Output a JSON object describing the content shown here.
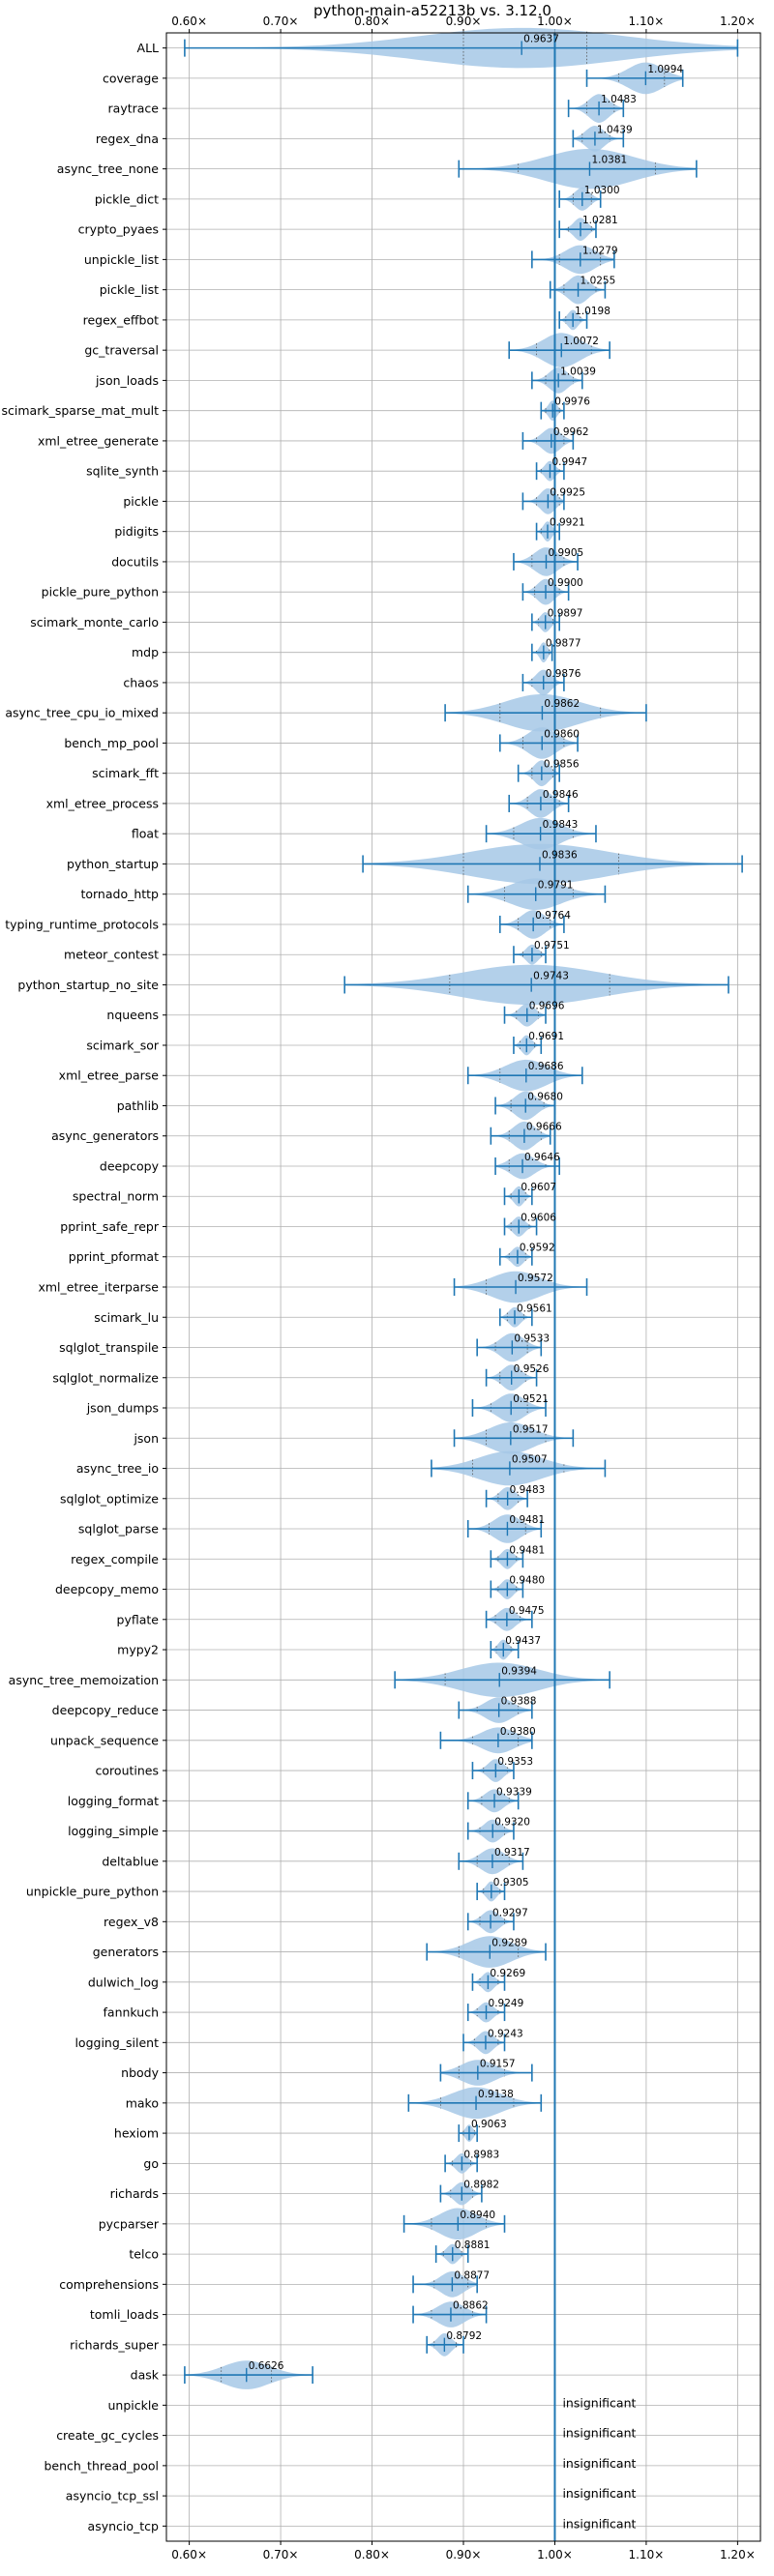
{
  "chart_data": {
    "type": "violin",
    "title": "python-main-a52213b vs. 3.12.0",
    "xlim": [
      0.575,
      1.225
    ],
    "x_ticks": [
      0.6,
      0.7,
      0.8,
      0.9,
      1.0,
      1.1,
      1.2
    ],
    "x_tick_labels": [
      "0.60×",
      "0.70×",
      "0.80×",
      "0.90×",
      "1.00×",
      "1.10×",
      "1.20×"
    ],
    "reference_line": 1.0,
    "grid": true,
    "colors": {
      "violin_fill": "#a6c8e6",
      "line": "#1f77b4",
      "grid": "#b0b0b0"
    },
    "insignificant_label": "insignificant",
    "benchmarks": [
      {
        "name": "ALL",
        "median": 0.9637,
        "label": "0.9637",
        "lo": 0.595,
        "hi": 1.2,
        "q1": 0.9,
        "q3": 1.035,
        "width": 0.7
      },
      {
        "name": "coverage",
        "median": 1.0994,
        "label": "1.0994",
        "lo": 1.035,
        "hi": 1.14,
        "q1": 1.07,
        "q3": 1.12,
        "width": 0.55
      },
      {
        "name": "raytrace",
        "median": 1.0483,
        "label": "1.0483",
        "lo": 1.015,
        "hi": 1.075,
        "q1": 1.035,
        "q3": 1.065,
        "width": 0.5
      },
      {
        "name": "regex_dna",
        "median": 1.0439,
        "label": "1.0439",
        "lo": 1.02,
        "hi": 1.075,
        "q1": 1.03,
        "q3": 1.06,
        "width": 0.45
      },
      {
        "name": "async_tree_none",
        "median": 1.0381,
        "label": "1.0381",
        "lo": 0.895,
        "hi": 1.155,
        "q1": 0.96,
        "q3": 1.11,
        "width": 0.7
      },
      {
        "name": "pickle_dict",
        "median": 1.03,
        "label": "1.0300",
        "lo": 1.005,
        "hi": 1.05,
        "q1": 1.02,
        "q3": 1.04,
        "width": 0.4
      },
      {
        "name": "crypto_pyaes",
        "median": 1.0281,
        "label": "1.0281",
        "lo": 1.005,
        "hi": 1.045,
        "q1": 1.015,
        "q3": 1.04,
        "width": 0.4
      },
      {
        "name": "unpickle_list",
        "median": 1.0279,
        "label": "1.0279",
        "lo": 0.975,
        "hi": 1.065,
        "q1": 1.005,
        "q3": 1.05,
        "width": 0.5
      },
      {
        "name": "pickle_list",
        "median": 1.0255,
        "label": "1.0255",
        "lo": 0.995,
        "hi": 1.055,
        "q1": 1.01,
        "q3": 1.045,
        "width": 0.5
      },
      {
        "name": "regex_effbot",
        "median": 1.0198,
        "label": "1.0198",
        "lo": 1.005,
        "hi": 1.035,
        "q1": 1.012,
        "q3": 1.028,
        "width": 0.35
      },
      {
        "name": "gc_traversal",
        "median": 1.0072,
        "label": "1.0072",
        "lo": 0.95,
        "hi": 1.06,
        "q1": 0.98,
        "q3": 1.04,
        "width": 0.6
      },
      {
        "name": "json_loads",
        "median": 1.0039,
        "label": "1.0039",
        "lo": 0.975,
        "hi": 1.03,
        "q1": 0.99,
        "q3": 1.02,
        "width": 0.45
      },
      {
        "name": "scimark_sparse_mat_mult",
        "median": 0.9976,
        "label": "0.9976",
        "lo": 0.985,
        "hi": 1.01,
        "q1": 0.99,
        "q3": 1.005,
        "width": 0.35
      },
      {
        "name": "xml_etree_generate",
        "median": 0.9962,
        "label": "0.9962",
        "lo": 0.965,
        "hi": 1.02,
        "q1": 0.98,
        "q3": 1.01,
        "width": 0.45
      },
      {
        "name": "sqlite_synth",
        "median": 0.9947,
        "label": "0.9947",
        "lo": 0.98,
        "hi": 1.01,
        "q1": 0.985,
        "q3": 1.005,
        "width": 0.35
      },
      {
        "name": "pickle",
        "median": 0.9925,
        "label": "0.9925",
        "lo": 0.965,
        "hi": 1.01,
        "q1": 0.98,
        "q3": 1.005,
        "width": 0.45
      },
      {
        "name": "pidigits",
        "median": 0.9921,
        "label": "0.9921",
        "lo": 0.98,
        "hi": 1.005,
        "q1": 0.985,
        "q3": 1.0,
        "width": 0.35
      },
      {
        "name": "docutils",
        "median": 0.9905,
        "label": "0.9905",
        "lo": 0.955,
        "hi": 1.025,
        "q1": 0.975,
        "q3": 1.01,
        "width": 0.5
      },
      {
        "name": "pickle_pure_python",
        "median": 0.99,
        "label": "0.9900",
        "lo": 0.965,
        "hi": 1.015,
        "q1": 0.978,
        "q3": 1.005,
        "width": 0.45
      },
      {
        "name": "scimark_monte_carlo",
        "median": 0.9897,
        "label": "0.9897",
        "lo": 0.975,
        "hi": 1.005,
        "q1": 0.982,
        "q3": 0.998,
        "width": 0.35
      },
      {
        "name": "mdp",
        "median": 0.9877,
        "label": "0.9877",
        "lo": 0.975,
        "hi": 0.997,
        "q1": 0.98,
        "q3": 0.994,
        "width": 0.35
      },
      {
        "name": "chaos",
        "median": 0.9876,
        "label": "0.9876",
        "lo": 0.965,
        "hi": 1.01,
        "q1": 0.975,
        "q3": 1.0,
        "width": 0.45
      },
      {
        "name": "async_tree_cpu_io_mixed",
        "median": 0.9862,
        "label": "0.9862",
        "lo": 0.88,
        "hi": 1.1,
        "q1": 0.94,
        "q3": 1.05,
        "width": 0.65
      },
      {
        "name": "bench_mp_pool",
        "median": 0.986,
        "label": "0.9860",
        "lo": 0.94,
        "hi": 1.025,
        "q1": 0.965,
        "q3": 1.01,
        "width": 0.55
      },
      {
        "name": "scimark_fft",
        "median": 0.9856,
        "label": "0.9856",
        "lo": 0.96,
        "hi": 1.005,
        "q1": 0.975,
        "q3": 0.998,
        "width": 0.45
      },
      {
        "name": "xml_etree_process",
        "median": 0.9846,
        "label": "0.9846",
        "lo": 0.95,
        "hi": 1.015,
        "q1": 0.97,
        "q3": 1.005,
        "width": 0.5
      },
      {
        "name": "float",
        "median": 0.9843,
        "label": "0.9843",
        "lo": 0.925,
        "hi": 1.045,
        "q1": 0.955,
        "q3": 1.02,
        "width": 0.55
      },
      {
        "name": "python_startup",
        "median": 0.9836,
        "label": "0.9836",
        "lo": 0.79,
        "hi": 1.205,
        "q1": 0.9,
        "q3": 1.07,
        "width": 0.7
      },
      {
        "name": "tornado_http",
        "median": 0.9791,
        "label": "0.9791",
        "lo": 0.905,
        "hi": 1.055,
        "q1": 0.945,
        "q3": 1.02,
        "width": 0.55
      },
      {
        "name": "typing_runtime_protocols",
        "median": 0.9764,
        "label": "0.9764",
        "lo": 0.94,
        "hi": 1.01,
        "q1": 0.96,
        "q3": 0.995,
        "width": 0.5
      },
      {
        "name": "meteor_contest",
        "median": 0.9751,
        "label": "0.9751",
        "lo": 0.955,
        "hi": 0.99,
        "q1": 0.965,
        "q3": 0.985,
        "width": 0.35
      },
      {
        "name": "python_startup_no_site",
        "median": 0.9743,
        "label": "0.9743",
        "lo": 0.77,
        "hi": 1.19,
        "q1": 0.885,
        "q3": 1.06,
        "width": 0.7
      },
      {
        "name": "nqueens",
        "median": 0.9696,
        "label": "0.9696",
        "lo": 0.945,
        "hi": 0.99,
        "q1": 0.958,
        "q3": 0.982,
        "width": 0.4
      },
      {
        "name": "scimark_sor",
        "median": 0.9691,
        "label": "0.9691",
        "lo": 0.955,
        "hi": 0.985,
        "q1": 0.962,
        "q3": 0.978,
        "width": 0.35
      },
      {
        "name": "xml_etree_parse",
        "median": 0.9686,
        "label": "0.9686",
        "lo": 0.905,
        "hi": 1.03,
        "q1": 0.94,
        "q3": 1.0,
        "width": 0.55
      },
      {
        "name": "pathlib",
        "median": 0.968,
        "label": "0.9680",
        "lo": 0.935,
        "hi": 1.0,
        "q1": 0.952,
        "q3": 0.988,
        "width": 0.5
      },
      {
        "name": "async_generators",
        "median": 0.9666,
        "label": "0.9666",
        "lo": 0.93,
        "hi": 0.995,
        "q1": 0.95,
        "q3": 0.985,
        "width": 0.5
      },
      {
        "name": "deepcopy",
        "median": 0.9646,
        "label": "0.9646",
        "lo": 0.935,
        "hi": 1.005,
        "q1": 0.95,
        "q3": 0.99,
        "width": 0.45
      },
      {
        "name": "spectral_norm",
        "median": 0.9607,
        "label": "0.9607",
        "lo": 0.945,
        "hi": 0.975,
        "q1": 0.952,
        "q3": 0.968,
        "width": 0.35
      },
      {
        "name": "pprint_safe_repr",
        "median": 0.9606,
        "label": "0.9606",
        "lo": 0.945,
        "hi": 0.98,
        "q1": 0.952,
        "q3": 0.972,
        "width": 0.35
      },
      {
        "name": "pprint_pformat",
        "median": 0.9592,
        "label": "0.9592",
        "lo": 0.94,
        "hi": 0.975,
        "q1": 0.95,
        "q3": 0.968,
        "width": 0.35
      },
      {
        "name": "xml_etree_iterparse",
        "median": 0.9572,
        "label": "0.9572",
        "lo": 0.89,
        "hi": 1.035,
        "q1": 0.925,
        "q3": 1.0,
        "width": 0.55
      },
      {
        "name": "scimark_lu",
        "median": 0.9561,
        "label": "0.9561",
        "lo": 0.94,
        "hi": 0.975,
        "q1": 0.948,
        "q3": 0.966,
        "width": 0.35
      },
      {
        "name": "sqlglot_transpile",
        "median": 0.9533,
        "label": "0.9533",
        "lo": 0.915,
        "hi": 0.985,
        "q1": 0.935,
        "q3": 0.97,
        "width": 0.5
      },
      {
        "name": "sqlglot_normalize",
        "median": 0.9526,
        "label": "0.9526",
        "lo": 0.925,
        "hi": 0.98,
        "q1": 0.94,
        "q3": 0.968,
        "width": 0.45
      },
      {
        "name": "json_dumps",
        "median": 0.9521,
        "label": "0.9521",
        "lo": 0.91,
        "hi": 0.99,
        "q1": 0.93,
        "q3": 0.97,
        "width": 0.5
      },
      {
        "name": "json",
        "median": 0.9517,
        "label": "0.9517",
        "lo": 0.89,
        "hi": 1.02,
        "q1": 0.925,
        "q3": 0.99,
        "width": 0.55
      },
      {
        "name": "async_tree_io",
        "median": 0.9507,
        "label": "0.9507",
        "lo": 0.865,
        "hi": 1.055,
        "q1": 0.91,
        "q3": 1.01,
        "width": 0.6
      },
      {
        "name": "sqlglot_optimize",
        "median": 0.9483,
        "label": "0.9483",
        "lo": 0.925,
        "hi": 0.97,
        "q1": 0.938,
        "q3": 0.96,
        "width": 0.4
      },
      {
        "name": "sqlglot_parse",
        "median": 0.9481,
        "label": "0.9481",
        "lo": 0.905,
        "hi": 0.985,
        "q1": 0.928,
        "q3": 0.968,
        "width": 0.5
      },
      {
        "name": "regex_compile",
        "median": 0.9481,
        "label": "0.9481",
        "lo": 0.93,
        "hi": 0.965,
        "q1": 0.938,
        "q3": 0.958,
        "width": 0.35
      },
      {
        "name": "deepcopy_memo",
        "median": 0.948,
        "label": "0.9480",
        "lo": 0.93,
        "hi": 0.965,
        "q1": 0.938,
        "q3": 0.958,
        "width": 0.35
      },
      {
        "name": "pyflate",
        "median": 0.9475,
        "label": "0.9475",
        "lo": 0.925,
        "hi": 0.975,
        "q1": 0.935,
        "q3": 0.962,
        "width": 0.4
      },
      {
        "name": "mypy2",
        "median": 0.9437,
        "label": "0.9437",
        "lo": 0.93,
        "hi": 0.96,
        "q1": 0.936,
        "q3": 0.952,
        "width": 0.35
      },
      {
        "name": "async_tree_memoization",
        "median": 0.9394,
        "label": "0.9394",
        "lo": 0.825,
        "hi": 1.06,
        "q1": 0.88,
        "q3": 1.0,
        "width": 0.6
      },
      {
        "name": "deepcopy_reduce",
        "median": 0.9388,
        "label": "0.9388",
        "lo": 0.895,
        "hi": 0.975,
        "q1": 0.915,
        "q3": 0.96,
        "width": 0.45
      },
      {
        "name": "unpack_sequence",
        "median": 0.938,
        "label": "0.9380",
        "lo": 0.875,
        "hi": 0.975,
        "q1": 0.91,
        "q3": 0.96,
        "width": 0.45
      },
      {
        "name": "coroutines",
        "median": 0.9353,
        "label": "0.9353",
        "lo": 0.91,
        "hi": 0.955,
        "q1": 0.922,
        "q3": 0.948,
        "width": 0.4
      },
      {
        "name": "logging_format",
        "median": 0.9339,
        "label": "0.9339",
        "lo": 0.905,
        "hi": 0.96,
        "q1": 0.92,
        "q3": 0.95,
        "width": 0.4
      },
      {
        "name": "logging_simple",
        "median": 0.932,
        "label": "0.9320",
        "lo": 0.905,
        "hi": 0.955,
        "q1": 0.918,
        "q3": 0.945,
        "width": 0.4
      },
      {
        "name": "deltablue",
        "median": 0.9317,
        "label": "0.9317",
        "lo": 0.895,
        "hi": 0.965,
        "q1": 0.915,
        "q3": 0.95,
        "width": 0.45
      },
      {
        "name": "unpickle_pure_python",
        "median": 0.9305,
        "label": "0.9305",
        "lo": 0.915,
        "hi": 0.945,
        "q1": 0.922,
        "q3": 0.94,
        "width": 0.35
      },
      {
        "name": "regex_v8",
        "median": 0.9297,
        "label": "0.9297",
        "lo": 0.905,
        "hi": 0.955,
        "q1": 0.918,
        "q3": 0.945,
        "width": 0.4
      },
      {
        "name": "generators",
        "median": 0.9289,
        "label": "0.9289",
        "lo": 0.86,
        "hi": 0.99,
        "q1": 0.895,
        "q3": 0.96,
        "width": 0.55
      },
      {
        "name": "dulwich_log",
        "median": 0.9269,
        "label": "0.9269",
        "lo": 0.91,
        "hi": 0.945,
        "q1": 0.918,
        "q3": 0.938,
        "width": 0.35
      },
      {
        "name": "fannkuch",
        "median": 0.9249,
        "label": "0.9249",
        "lo": 0.905,
        "hi": 0.945,
        "q1": 0.915,
        "q3": 0.938,
        "width": 0.35
      },
      {
        "name": "logging_silent",
        "median": 0.9243,
        "label": "0.9243",
        "lo": 0.9,
        "hi": 0.945,
        "q1": 0.912,
        "q3": 0.938,
        "width": 0.4
      },
      {
        "name": "nbody",
        "median": 0.9157,
        "label": "0.9157",
        "lo": 0.875,
        "hi": 0.975,
        "q1": 0.895,
        "q3": 0.945,
        "width": 0.45
      },
      {
        "name": "mako",
        "median": 0.9138,
        "label": "0.9138",
        "lo": 0.84,
        "hi": 0.985,
        "q1": 0.875,
        "q3": 0.955,
        "width": 0.55
      },
      {
        "name": "hexiom",
        "median": 0.9063,
        "label": "0.9063",
        "lo": 0.895,
        "hi": 0.915,
        "q1": 0.9,
        "q3": 0.912,
        "width": 0.3
      },
      {
        "name": "go",
        "median": 0.8983,
        "label": "0.8983",
        "lo": 0.88,
        "hi": 0.915,
        "q1": 0.888,
        "q3": 0.908,
        "width": 0.35
      },
      {
        "name": "richards",
        "median": 0.8982,
        "label": "0.8982",
        "lo": 0.875,
        "hi": 0.92,
        "q1": 0.886,
        "q3": 0.91,
        "width": 0.4
      },
      {
        "name": "pycparser",
        "median": 0.894,
        "label": "0.8940",
        "lo": 0.835,
        "hi": 0.945,
        "q1": 0.865,
        "q3": 0.925,
        "width": 0.55
      },
      {
        "name": "telco",
        "median": 0.8881,
        "label": "0.8881",
        "lo": 0.87,
        "hi": 0.905,
        "q1": 0.878,
        "q3": 0.898,
        "width": 0.35
      },
      {
        "name": "comprehensions",
        "median": 0.8877,
        "label": "0.8877",
        "lo": 0.845,
        "hi": 0.915,
        "q1": 0.868,
        "q3": 0.905,
        "width": 0.45
      },
      {
        "name": "tomli_loads",
        "median": 0.8862,
        "label": "0.8862",
        "lo": 0.845,
        "hi": 0.925,
        "q1": 0.865,
        "q3": 0.91,
        "width": 0.45
      },
      {
        "name": "richards_super",
        "median": 0.8792,
        "label": "0.8792",
        "lo": 0.86,
        "hi": 0.9,
        "q1": 0.868,
        "q3": 0.892,
        "width": 0.4
      },
      {
        "name": "dask",
        "median": 0.6626,
        "label": "0.6626",
        "lo": 0.595,
        "hi": 0.735,
        "q1": 0.635,
        "q3": 0.69,
        "width": 0.5
      },
      {
        "name": "unpickle",
        "insignificant": true
      },
      {
        "name": "create_gc_cycles",
        "insignificant": true
      },
      {
        "name": "bench_thread_pool",
        "insignificant": true
      },
      {
        "name": "asyncio_tcp_ssl",
        "insignificant": true
      },
      {
        "name": "asyncio_tcp",
        "insignificant": true
      }
    ]
  }
}
